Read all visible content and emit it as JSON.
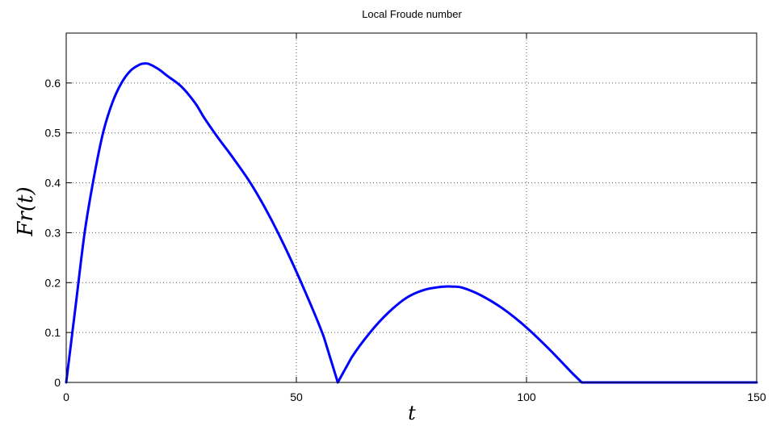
{
  "chart_data": {
    "type": "line",
    "title": "Local Froude number",
    "xlabel": "t",
    "ylabel": "Fr(t)",
    "xlim": [
      0,
      150
    ],
    "ylim": [
      0,
      0.7
    ],
    "xticks": [
      0,
      50,
      100,
      150
    ],
    "yticks": [
      0,
      0.1,
      0.2,
      0.3,
      0.4,
      0.5,
      0.6
    ],
    "xtick_labels": [
      "0",
      "50",
      "100",
      "150"
    ],
    "ytick_labels": [
      "0",
      "0.1",
      "0.2",
      "0.3",
      "0.4",
      "0.5",
      "0.6"
    ],
    "grid": true,
    "series": [
      {
        "color": "#0000ff",
        "x": [
          0,
          2,
          4,
          6,
          8,
          10,
          12,
          14,
          16,
          17,
          18,
          20,
          22,
          25,
          28,
          30,
          33,
          36,
          40,
          44,
          48,
          52,
          56,
          59,
          62,
          66,
          70,
          74,
          78,
          82,
          84,
          86,
          90,
          95,
          100,
          105,
          110,
          112,
          120,
          130,
          140,
          150
        ],
        "y": [
          0,
          0.15,
          0.3,
          0.41,
          0.5,
          0.56,
          0.6,
          0.625,
          0.637,
          0.639,
          0.638,
          0.628,
          0.614,
          0.593,
          0.56,
          0.53,
          0.49,
          0.453,
          0.4,
          0.336,
          0.262,
          0.18,
          0.09,
          0.0,
          0.05,
          0.1,
          0.14,
          0.17,
          0.186,
          0.192,
          0.192,
          0.19,
          0.175,
          0.147,
          0.11,
          0.066,
          0.018,
          0.0,
          0.0,
          0.0,
          0.0,
          0.0
        ]
      }
    ]
  }
}
